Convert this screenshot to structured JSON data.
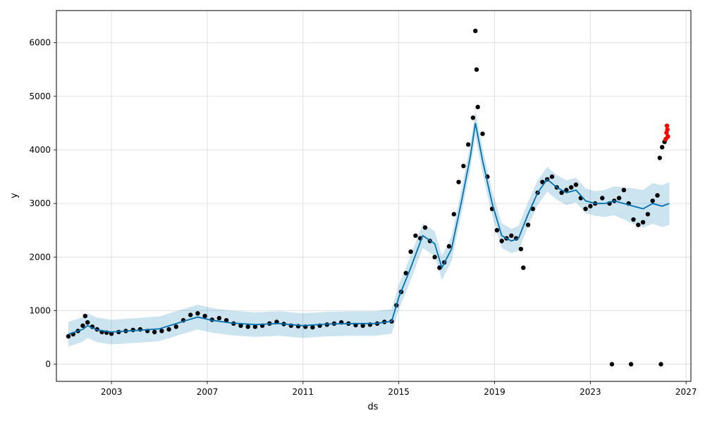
{
  "chart_data": {
    "type": "scatter",
    "title": "",
    "xlabel": "ds",
    "ylabel": "y",
    "xlim": [
      2000.7,
      2027.2
    ],
    "ylim": [
      -320,
      6600
    ],
    "x_ticks": [
      2003,
      2007,
      2011,
      2015,
      2019,
      2023,
      2027
    ],
    "y_ticks": [
      0,
      1000,
      2000,
      3000,
      4000,
      5000,
      6000
    ],
    "grid": true,
    "legend": "none",
    "colors": {
      "observed": "#000000",
      "forecast_line": "#0072b2",
      "uncertainty_band": "#0072b2",
      "highlighted": "#ff0000",
      "grid": "#d9d9d9"
    },
    "series": [
      {
        "role": "observed",
        "points": [
          [
            2001.2,
            520
          ],
          [
            2001.4,
            560
          ],
          [
            2001.6,
            620
          ],
          [
            2001.8,
            720
          ],
          [
            2001.9,
            900
          ],
          [
            2002.0,
            780
          ],
          [
            2002.2,
            700
          ],
          [
            2002.4,
            650
          ],
          [
            2002.6,
            600
          ],
          [
            2002.8,
            590
          ],
          [
            2003.0,
            570
          ],
          [
            2003.3,
            600
          ],
          [
            2003.6,
            620
          ],
          [
            2003.9,
            640
          ],
          [
            2004.2,
            650
          ],
          [
            2004.5,
            620
          ],
          [
            2004.8,
            600
          ],
          [
            2005.1,
            620
          ],
          [
            2005.4,
            650
          ],
          [
            2005.7,
            700
          ],
          [
            2006.0,
            820
          ],
          [
            2006.3,
            920
          ],
          [
            2006.6,
            950
          ],
          [
            2006.9,
            900
          ],
          [
            2007.2,
            830
          ],
          [
            2007.5,
            860
          ],
          [
            2007.8,
            820
          ],
          [
            2008.1,
            760
          ],
          [
            2008.4,
            720
          ],
          [
            2008.7,
            700
          ],
          [
            2009.0,
            700
          ],
          [
            2009.3,
            720
          ],
          [
            2009.6,
            760
          ],
          [
            2009.9,
            790
          ],
          [
            2010.2,
            750
          ],
          [
            2010.5,
            720
          ],
          [
            2010.8,
            710
          ],
          [
            2011.1,
            700
          ],
          [
            2011.4,
            690
          ],
          [
            2011.7,
            720
          ],
          [
            2012.0,
            740
          ],
          [
            2012.3,
            760
          ],
          [
            2012.6,
            780
          ],
          [
            2012.9,
            760
          ],
          [
            2013.2,
            730
          ],
          [
            2013.5,
            720
          ],
          [
            2013.8,
            740
          ],
          [
            2014.1,
            760
          ],
          [
            2014.4,
            790
          ],
          [
            2014.7,
            800
          ],
          [
            2014.9,
            1100
          ],
          [
            2015.1,
            1350
          ],
          [
            2015.3,
            1700
          ],
          [
            2015.5,
            2100
          ],
          [
            2015.7,
            2400
          ],
          [
            2015.9,
            2350
          ],
          [
            2016.1,
            2550
          ],
          [
            2016.3,
            2300
          ],
          [
            2016.5,
            2000
          ],
          [
            2016.7,
            1800
          ],
          [
            2016.9,
            1900
          ],
          [
            2017.1,
            2200
          ],
          [
            2017.3,
            2800
          ],
          [
            2017.5,
            3400
          ],
          [
            2017.7,
            3700
          ],
          [
            2017.9,
            4100
          ],
          [
            2018.1,
            4600
          ],
          [
            2018.2,
            6220
          ],
          [
            2018.25,
            5500
          ],
          [
            2018.3,
            4800
          ],
          [
            2018.5,
            4300
          ],
          [
            2018.7,
            3500
          ],
          [
            2018.9,
            2900
          ],
          [
            2019.1,
            2500
          ],
          [
            2019.3,
            2300
          ],
          [
            2019.5,
            2350
          ],
          [
            2019.7,
            2400
          ],
          [
            2019.9,
            2350
          ],
          [
            2020.1,
            2150
          ],
          [
            2020.2,
            1800
          ],
          [
            2020.4,
            2600
          ],
          [
            2020.6,
            2900
          ],
          [
            2020.8,
            3200
          ],
          [
            2021.0,
            3400
          ],
          [
            2021.2,
            3450
          ],
          [
            2021.4,
            3500
          ],
          [
            2021.6,
            3300
          ],
          [
            2021.8,
            3200
          ],
          [
            2022.0,
            3250
          ],
          [
            2022.2,
            3300
          ],
          [
            2022.4,
            3350
          ],
          [
            2022.6,
            3100
          ],
          [
            2022.8,
            2900
          ],
          [
            2023.0,
            2950
          ],
          [
            2023.2,
            3000
          ],
          [
            2023.5,
            3100
          ],
          [
            2023.8,
            3000
          ],
          [
            2024.0,
            3050
          ],
          [
            2024.2,
            3100
          ],
          [
            2024.4,
            3250
          ],
          [
            2024.6,
            3000
          ],
          [
            2024.8,
            2700
          ],
          [
            2025.0,
            2600
          ],
          [
            2025.2,
            2650
          ],
          [
            2025.4,
            2800
          ],
          [
            2025.6,
            3050
          ],
          [
            2025.8,
            3150
          ],
          [
            2025.9,
            3850
          ],
          [
            2026.0,
            4050
          ],
          [
            2026.1,
            4150
          ],
          [
            2023.9,
            0
          ],
          [
            2024.7,
            0
          ],
          [
            2025.95,
            0
          ]
        ]
      },
      {
        "role": "highlighted",
        "points": [
          [
            2026.15,
            4200
          ],
          [
            2026.18,
            4320
          ],
          [
            2026.2,
            4450
          ],
          [
            2026.22,
            4380
          ],
          [
            2026.24,
            4250
          ]
        ]
      },
      {
        "role": "forecast",
        "x": [
          2001.2,
          2001.8,
          2002.0,
          2002.4,
          2003.0,
          2004.0,
          2005.0,
          2006.0,
          2006.6,
          2007.2,
          2008.0,
          2009.0,
          2010.0,
          2011.0,
          2012.0,
          2013.0,
          2014.0,
          2014.7,
          2015.0,
          2015.5,
          2016.0,
          2016.5,
          2016.8,
          2017.2,
          2017.6,
          2018.0,
          2018.2,
          2018.5,
          2018.9,
          2019.3,
          2019.7,
          2020.0,
          2020.4,
          2020.8,
          2021.2,
          2021.6,
          2022.0,
          2022.4,
          2022.8,
          2023.2,
          2023.6,
          2024.0,
          2024.4,
          2024.8,
          2025.2,
          2025.6,
          2026.0,
          2026.3
        ],
        "yhat": [
          560,
          650,
          720,
          640,
          600,
          630,
          660,
          800,
          880,
          820,
          770,
          740,
          760,
          720,
          750,
          760,
          760,
          800,
          1250,
          1800,
          2400,
          2250,
          1800,
          2150,
          3000,
          3900,
          4500,
          3800,
          3000,
          2400,
          2300,
          2350,
          2800,
          3200,
          3450,
          3300,
          3200,
          3250,
          3050,
          3000,
          3000,
          3050,
          3000,
          2950,
          2900,
          3000,
          2950,
          3000
        ],
        "yhat_lower": [
          330,
          420,
          490,
          410,
          370,
          400,
          430,
          570,
          650,
          590,
          540,
          510,
          530,
          490,
          520,
          530,
          530,
          570,
          1020,
          1570,
          2170,
          2020,
          1570,
          1920,
          2770,
          3670,
          4270,
          3570,
          2770,
          2170,
          2070,
          2120,
          2570,
          2970,
          3220,
          3070,
          2970,
          3020,
          2820,
          2770,
          2750,
          2780,
          2700,
          2620,
          2550,
          2620,
          2560,
          2600
        ],
        "yhat_upper": [
          790,
          880,
          950,
          870,
          830,
          860,
          890,
          1030,
          1110,
          1050,
          1000,
          970,
          990,
          950,
          980,
          990,
          990,
          1030,
          1480,
          2030,
          2630,
          2480,
          2030,
          2380,
          3230,
          4130,
          4730,
          4030,
          3230,
          2630,
          2530,
          2580,
          3030,
          3430,
          3680,
          3530,
          3430,
          3480,
          3280,
          3230,
          3250,
          3320,
          3300,
          3280,
          3250,
          3380,
          3340,
          3400
        ]
      }
    ]
  }
}
